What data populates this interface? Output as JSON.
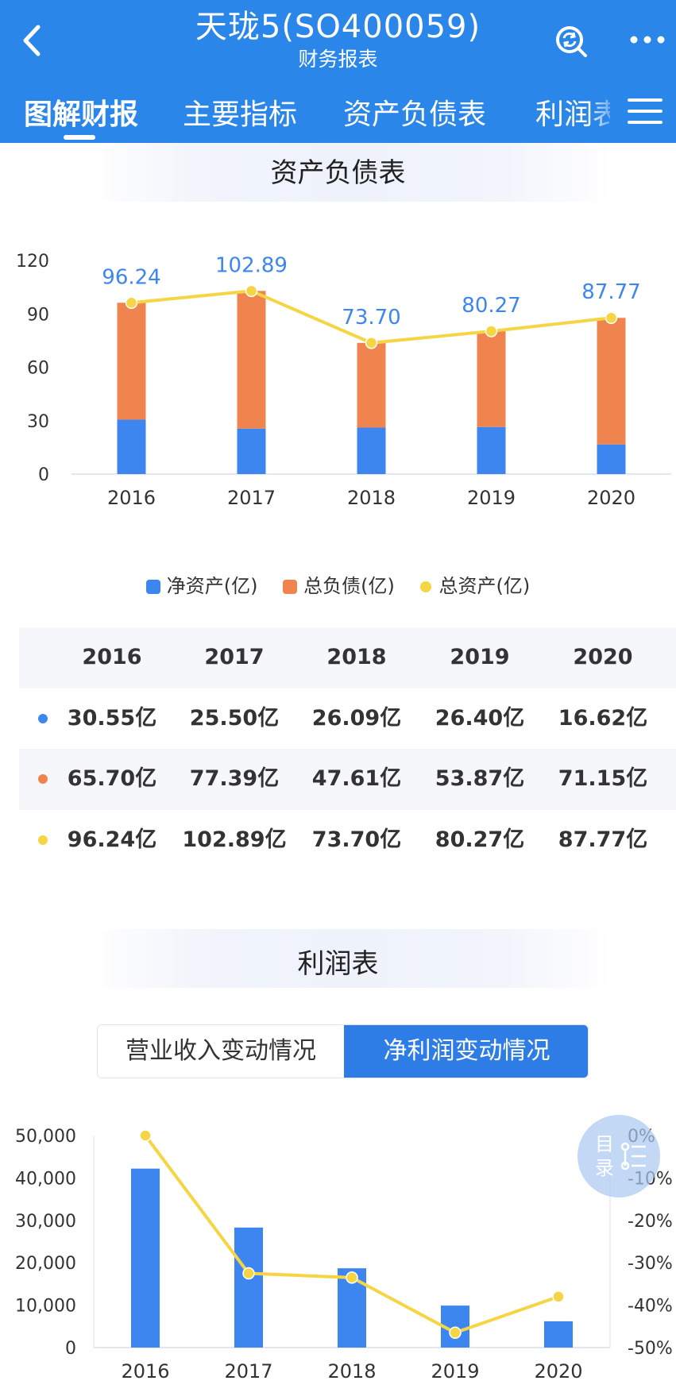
{
  "header": {
    "title": "天珑5(SO400059)",
    "subtitle": "财务报表",
    "back_icon": "chevron-left-icon",
    "refresh_icon": "refresh-search-icon",
    "more_icon": "more-dots-icon",
    "bg_color": "#2a86e8"
  },
  "tabs": [
    {
      "label": "图解财报",
      "active": true
    },
    {
      "label": "主要指标",
      "active": false
    },
    {
      "label": "资产负债表",
      "active": false
    },
    {
      "label": "利润表",
      "active": false
    }
  ],
  "balance_section": {
    "title": "资产负债表",
    "legend": [
      {
        "label": "净资产(亿)",
        "color": "#3d86f0"
      },
      {
        "label": "总负债(亿)",
        "color": "#f0844f"
      },
      {
        "label": "总资产(亿)",
        "color": "#f5d544"
      }
    ],
    "table": {
      "header": [
        "2016",
        "2017",
        "2018",
        "2019",
        "2020"
      ],
      "rows": [
        {
          "color": "#3d86f0",
          "values": [
            "30.55亿",
            "25.50亿",
            "26.09亿",
            "26.40亿",
            "16.62亿"
          ]
        },
        {
          "color": "#f0844f",
          "values": [
            "65.70亿",
            "77.39亿",
            "47.61亿",
            "53.87亿",
            "71.15亿"
          ]
        },
        {
          "color": "#f5d544",
          "values": [
            "96.24亿",
            "102.89亿",
            "73.70亿",
            "80.27亿",
            "87.77亿"
          ]
        }
      ]
    }
  },
  "profit_section": {
    "title": "利润表",
    "segments": [
      {
        "label": "营业收入变动情况",
        "selected": false
      },
      {
        "label": "净利润变动情况",
        "selected": true
      }
    ]
  },
  "toc_button": {
    "label": "目录",
    "icon": "tree-list-icon"
  },
  "chart_data": [
    {
      "type": "bar",
      "stacked": true,
      "title": "资产负债表",
      "categories": [
        "2016",
        "2017",
        "2018",
        "2019",
        "2020"
      ],
      "series": [
        {
          "name": "净资产(亿)",
          "kind": "bar",
          "color": "#3d86f0",
          "values": [
            30.55,
            25.5,
            26.09,
            26.4,
            16.62
          ]
        },
        {
          "name": "总负债(亿)",
          "kind": "bar",
          "color": "#f0844f",
          "values": [
            65.7,
            77.39,
            47.61,
            53.87,
            71.15
          ]
        },
        {
          "name": "总资产(亿)",
          "kind": "line",
          "color": "#f5d544",
          "values": [
            96.24,
            102.89,
            73.7,
            80.27,
            87.77
          ]
        }
      ],
      "data_labels": [
        "96.24",
        "102.89",
        "73.70",
        "80.27",
        "87.77"
      ],
      "yticks": [
        "0",
        "30",
        "60",
        "90",
        "120"
      ],
      "ylim": [
        0,
        120
      ],
      "grid": false,
      "legend_position": "bottom"
    },
    {
      "type": "bar",
      "title": "",
      "categories": [
        "2016",
        "2017",
        "2018",
        "2019",
        "2020"
      ],
      "series": [
        {
          "kind": "bar",
          "axis": "left",
          "color": "#3d86f0",
          "values": [
            42200,
            28300,
            18700,
            9900,
            6200
          ]
        },
        {
          "kind": "line",
          "axis": "right",
          "color": "#f5d544",
          "values": [
            0,
            -32.5,
            -33.5,
            -46.5,
            -38.0
          ]
        }
      ],
      "yticks_left": [
        "0",
        "10,000",
        "20,000",
        "30,000",
        "40,000",
        "50,000"
      ],
      "yticks_right": [
        "0%",
        "-10%",
        "-20%",
        "-30%",
        "-40%",
        "-50%"
      ],
      "ylim_left": [
        0,
        50000
      ],
      "ylim_right": [
        -50,
        0
      ],
      "grid": false
    }
  ]
}
